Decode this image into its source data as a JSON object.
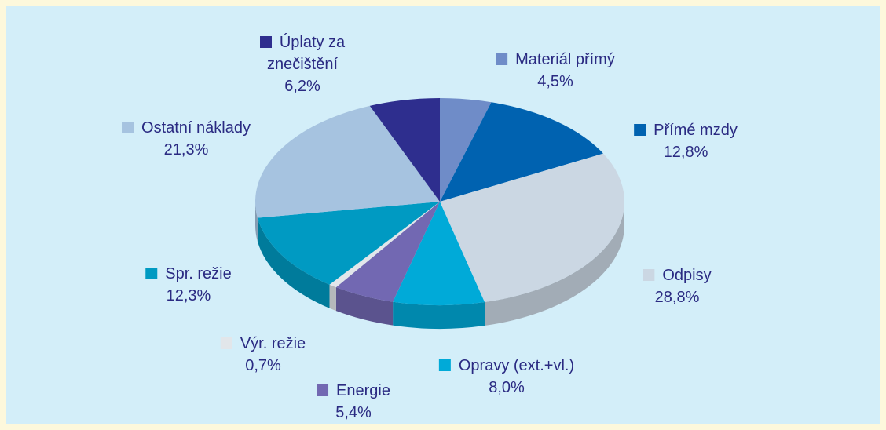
{
  "chart_data": {
    "type": "pie",
    "categories": [
      "Materiál přímý",
      "Přímé mzdy",
      "Odpisy",
      "Opravy (ext.+vl.)",
      "Energie",
      "Výr. režie",
      "Spr. režie",
      "Ostatní náklady",
      "Úplaty za znečištění"
    ],
    "values": [
      4.5,
      12.8,
      28.8,
      8.0,
      5.4,
      0.7,
      12.3,
      21.3,
      6.2
    ],
    "value_labels": [
      "4,5%",
      "12,8%",
      "28,8%",
      "8,0%",
      "5,4%",
      "0,7%",
      "12,3%",
      "21,3%",
      "6,2%"
    ],
    "colors": [
      "#6f8cc8",
      "#0062b0",
      "#cbd7e3",
      "#00aad8",
      "#7268b2",
      "#e2e6ea",
      "#009ac2",
      "#a6c3e0",
      "#2e2e8e"
    ]
  }
}
